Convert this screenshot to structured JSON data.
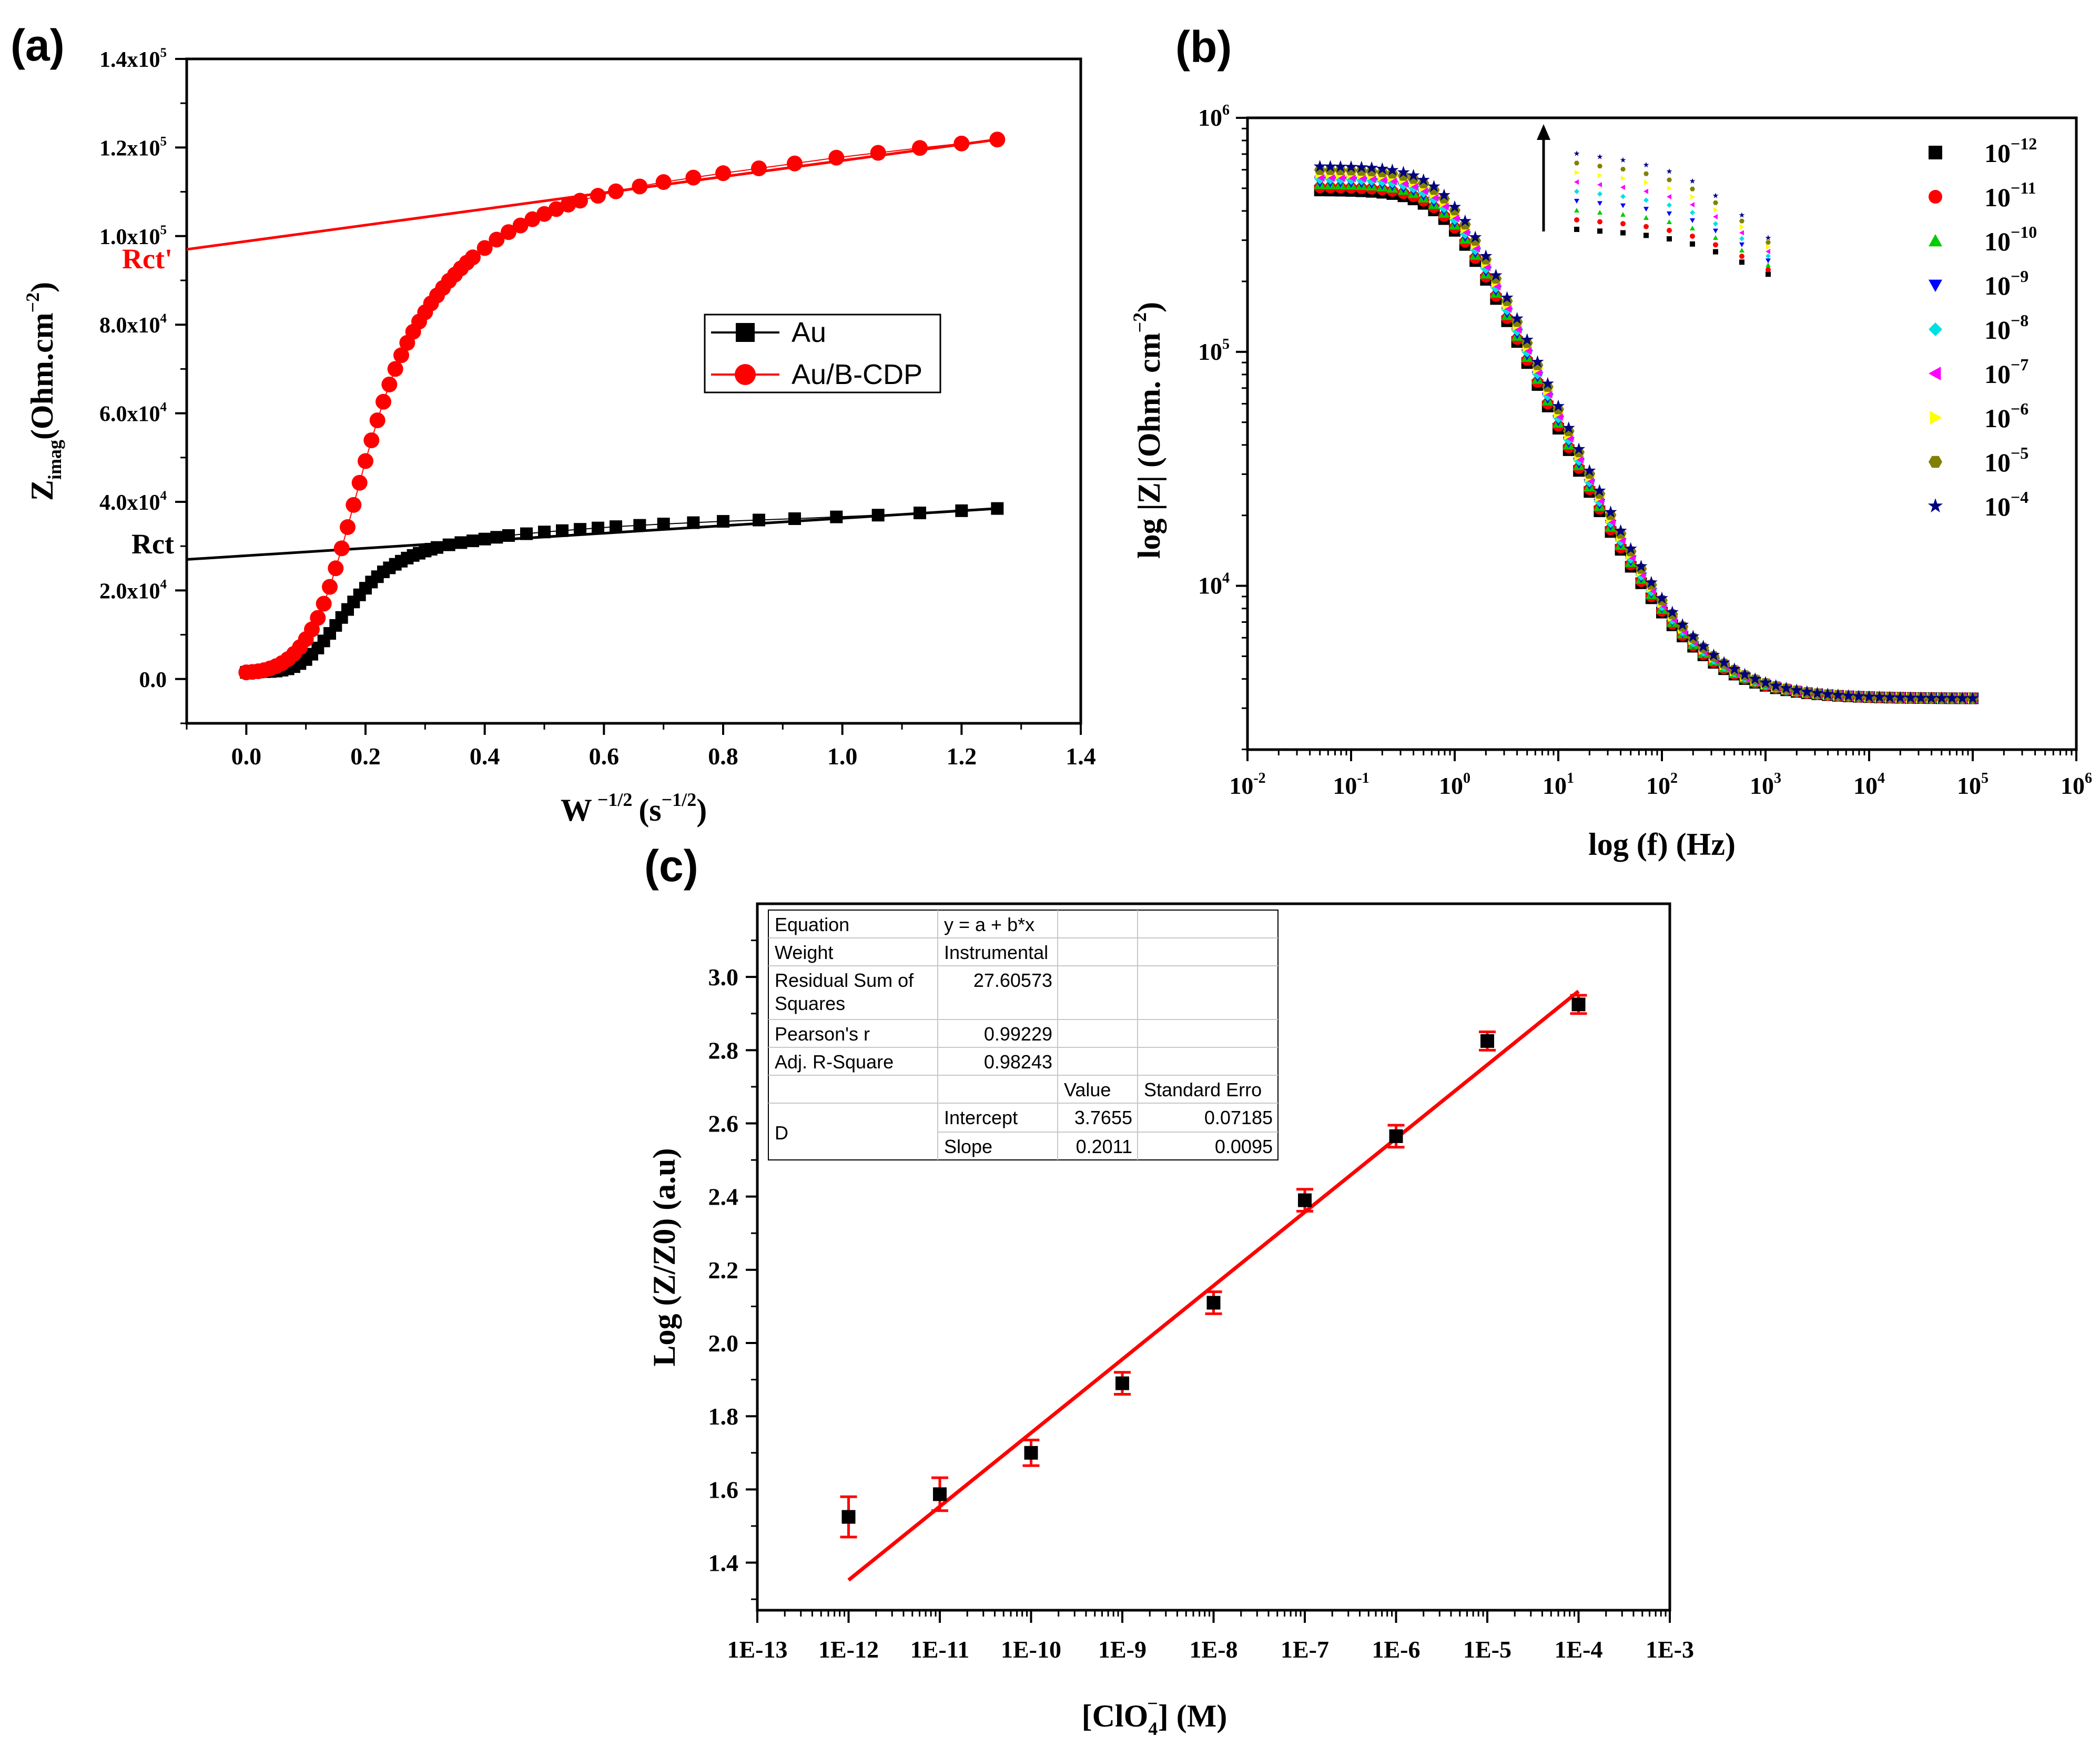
{
  "figure": {
    "panels": [
      {
        "id": "a",
        "label": "(a)",
        "ylabel_main": "Z",
        "ylabel_sub": "imag",
        "ylabel_unit": "(Ohm.cm",
        "ylabel_exp": "−2",
        "ylabel_close": ")",
        "xlabel_main": "W",
        "xlabel_exp": "−1/2",
        "xlabel_unit": "(s",
        "xlabel_unit_exp": "−1/2",
        "xlabel_close": ")",
        "rct_label": "Rct",
        "rct_prime_label": "Rct'"
      },
      {
        "id": "b",
        "label": "(b)",
        "ylabel": "log |Z| (Ohm. cm",
        "ylabel_exp": "−2",
        "ylabel_close": ")",
        "xlabel": "log (f) (Hz)"
      },
      {
        "id": "c",
        "label": "(c)",
        "ylabel": "Log (Z/Z0) (a.u)",
        "xlabel_pre": "[ClO",
        "xlabel_sub": "4",
        "xlabel_sup": "−",
        "xlabel_post": "] (M)"
      }
    ]
  },
  "fit_table": {
    "rows": [
      [
        "Equation",
        "y = a + b*x",
        "",
        ""
      ],
      [
        "Weight",
        "Instrumental",
        "",
        ""
      ],
      [
        "Residual Sum of",
        "27.60573",
        "",
        ""
      ],
      [
        "Squares",
        "",
        "",
        ""
      ],
      [
        "Pearson's r",
        "0.99229",
        "",
        ""
      ],
      [
        "Adj. R-Square",
        "0.98243",
        "",
        ""
      ],
      [
        "",
        "",
        "Value",
        "Standard Erro"
      ],
      [
        "D",
        "Intercept",
        "3.7655",
        "0.07185"
      ],
      [
        "",
        "Slope",
        "0.2011",
        "0.0095"
      ]
    ]
  },
  "chart_data": [
    {
      "panel": "a",
      "type": "scatter",
      "title": "",
      "xlabel": "W −1/2 (s −1/2)",
      "ylabel": "Zimag (Ohm.cm−2)",
      "xlim": [
        -0.1,
        1.4
      ],
      "ylim": [
        -10000,
        140000
      ],
      "xticks": [
        0.0,
        0.2,
        0.4,
        0.6,
        0.8,
        1.0,
        1.2,
        1.4
      ],
      "xtick_labels": [
        "0.0",
        "0.2",
        "0.4",
        "0.6",
        "0.8",
        "1.0",
        "1.2",
        "1.4"
      ],
      "yticks": [
        0,
        20000,
        40000,
        60000,
        80000,
        100000,
        120000,
        140000
      ],
      "ytick_labels": [
        {
          "mant": "0.0",
          "exp": ""
        },
        {
          "mant": "2.0x10",
          "exp": "4"
        },
        {
          "mant": "4.0x10",
          "exp": "4"
        },
        {
          "mant": "6.0x10",
          "exp": "4"
        },
        {
          "mant": "8.0x10",
          "exp": "4"
        },
        {
          "mant": "1.0x10",
          "exp": "5"
        },
        {
          "mant": "1.2x10",
          "exp": "5"
        },
        {
          "mant": "1.4x10",
          "exp": "5"
        }
      ],
      "legend": {
        "position": "center-right",
        "entries": [
          "Au",
          "Au/B-CDP"
        ]
      },
      "series": [
        {
          "name": "Au",
          "color": "#000000",
          "marker": "square",
          "x": [
            0.0,
            0.01,
            0.02,
            0.03,
            0.04,
            0.05,
            0.06,
            0.07,
            0.08,
            0.09,
            0.1,
            0.11,
            0.12,
            0.13,
            0.14,
            0.15,
            0.16,
            0.17,
            0.18,
            0.19,
            0.2,
            0.21,
            0.22,
            0.23,
            0.24,
            0.25,
            0.26,
            0.27,
            0.28,
            0.29,
            0.3,
            0.31,
            0.32,
            0.34,
            0.36,
            0.38,
            0.4,
            0.42,
            0.44,
            0.47,
            0.5,
            0.53,
            0.56,
            0.59,
            0.62,
            0.66,
            0.7,
            0.75,
            0.8,
            0.86,
            0.92,
            0.99,
            1.06,
            1.13,
            1.2,
            1.26
          ],
          "y": [
            1500,
            1550,
            1600,
            1650,
            1700,
            1800,
            2000,
            2300,
            2800,
            3500,
            4400,
            5600,
            7000,
            8600,
            10300,
            12100,
            13900,
            15700,
            17400,
            19000,
            20500,
            21900,
            23100,
            24200,
            25100,
            25900,
            26600,
            27300,
            27900,
            28400,
            28900,
            29300,
            29700,
            30300,
            30800,
            31200,
            31600,
            32000,
            32400,
            32800,
            33200,
            33500,
            33800,
            34100,
            34400,
            34700,
            35000,
            35300,
            35600,
            35900,
            36200,
            36600,
            37000,
            37500,
            38000,
            38500
          ]
        },
        {
          "name": "Au/B-CDP",
          "color": "#ff0000",
          "marker": "circle",
          "x": [
            0.0,
            0.01,
            0.02,
            0.03,
            0.04,
            0.05,
            0.06,
            0.07,
            0.08,
            0.09,
            0.1,
            0.11,
            0.12,
            0.13,
            0.14,
            0.15,
            0.16,
            0.17,
            0.18,
            0.19,
            0.2,
            0.21,
            0.22,
            0.23,
            0.24,
            0.25,
            0.26,
            0.27,
            0.28,
            0.29,
            0.3,
            0.31,
            0.32,
            0.33,
            0.34,
            0.35,
            0.36,
            0.37,
            0.38,
            0.4,
            0.42,
            0.44,
            0.46,
            0.48,
            0.5,
            0.52,
            0.54,
            0.56,
            0.59,
            0.62,
            0.66,
            0.7,
            0.75,
            0.8,
            0.86,
            0.92,
            0.99,
            1.06,
            1.13,
            1.2,
            1.26
          ],
          "y": [
            1500,
            1600,
            1750,
            2000,
            2400,
            2900,
            3600,
            4500,
            5700,
            7200,
            9000,
            11200,
            13800,
            17000,
            20800,
            25000,
            29500,
            34300,
            39300,
            44300,
            49200,
            53900,
            58400,
            62600,
            66500,
            70000,
            73100,
            75900,
            78400,
            80700,
            82800,
            84800,
            86600,
            88300,
            89900,
            91300,
            92700,
            94000,
            95200,
            97300,
            99200,
            100900,
            102400,
            103800,
            105000,
            106100,
            107100,
            108000,
            109100,
            110100,
            111200,
            112200,
            113200,
            114200,
            115300,
            116400,
            117700,
            118800,
            119900,
            120900,
            121800
          ]
        }
      ],
      "fit_lines": [
        {
          "name": "Au fit",
          "color": "#000000",
          "x": [
            -0.1,
            1.26
          ],
          "y": [
            27000,
            38500
          ]
        },
        {
          "name": "Au/B-CDP fit",
          "color": "#ff0000",
          "x": [
            -0.1,
            1.26
          ],
          "y": [
            97000,
            121800
          ]
        }
      ]
    },
    {
      "panel": "b",
      "type": "scatter",
      "title": "",
      "xlabel": "log (f) (Hz)",
      "ylabel": "log |Z| (Ohm. cm−2)",
      "xscale": "log",
      "yscale": "log",
      "xlim_exp": [
        -2,
        6
      ],
      "ylim_exp": [
        3.3,
        6.0
      ],
      "xtick_exps": [
        -2,
        -1,
        0,
        1,
        2,
        3,
        4,
        5,
        6
      ],
      "xtick_labels": [
        {
          "base": "10",
          "exp": "-2"
        },
        {
          "base": "10",
          "exp": "-1"
        },
        {
          "base": "10",
          "exp": "0"
        },
        {
          "base": "10",
          "exp": "1"
        },
        {
          "base": "10",
          "exp": "2"
        },
        {
          "base": "10",
          "exp": "3"
        },
        {
          "base": "10",
          "exp": "4"
        },
        {
          "base": "10",
          "exp": "5"
        },
        {
          "base": "10",
          "exp": "6"
        }
      ],
      "ytick_exps": [
        4,
        5,
        6
      ],
      "ytick_labels": [
        {
          "base": "10",
          "exp": "4"
        },
        {
          "base": "10",
          "exp": "5"
        },
        {
          "base": "10",
          "exp": "6"
        }
      ],
      "legend": {
        "position": "right"
      },
      "series": [
        {
          "name": "10−12",
          "base": "10",
          "exp": "−12",
          "color": "#000000",
          "marker": "square",
          "z_low": 490000
        },
        {
          "name": "10−11",
          "base": "10",
          "exp": "−11",
          "color": "#ff0000",
          "marker": "circle",
          "z_low": 505000
        },
        {
          "name": "10−10",
          "base": "10",
          "exp": "−10",
          "color": "#00cc00",
          "marker": "triangle-up",
          "z_low": 520000
        },
        {
          "name": "10−9",
          "base": "10",
          "exp": "−9",
          "color": "#0000ff",
          "marker": "triangle-down",
          "z_low": 535000
        },
        {
          "name": "10−8",
          "base": "10",
          "exp": "−8",
          "color": "#00e0e0",
          "marker": "diamond",
          "z_low": 550000
        },
        {
          "name": "10−7",
          "base": "10",
          "exp": "−7",
          "color": "#ff00ff",
          "marker": "triangle-left",
          "z_low": 565000
        },
        {
          "name": "10−6",
          "base": "10",
          "exp": "−6",
          "color": "#ffff00",
          "marker": "triangle-right",
          "z_low": 580000
        },
        {
          "name": "10−5",
          "base": "10",
          "exp": "−5",
          "color": "#808000",
          "marker": "hexagon",
          "z_low": 600000
        },
        {
          "name": "10−4",
          "base": "10",
          "exp": "−4",
          "color": "#000080",
          "marker": "star",
          "z_low": 620000
        }
      ],
      "model": {
        "z_high": 3300,
        "corner_freq_hz": 0.9,
        "slope": 1.0
      },
      "freq_points_hz": [
        0.05,
        0.063,
        0.079,
        0.1,
        0.126,
        0.158,
        0.2,
        0.25,
        0.32,
        0.4,
        0.5,
        0.63,
        0.79,
        1.0,
        1.26,
        1.58,
        2.0,
        2.5,
        3.2,
        4.0,
        5.0,
        6.3,
        7.9,
        10,
        12.6,
        15.8,
        20,
        25,
        32,
        40,
        50,
        63,
        79,
        100,
        126,
        158,
        200,
        251,
        316,
        398,
        501,
        631,
        794,
        1000,
        1259,
        1585,
        1995,
        2512,
        3162,
        3981,
        5012,
        6310,
        7943,
        10000,
        12589,
        15849,
        19953,
        25119,
        31623,
        39811,
        50119,
        63096,
        79433,
        100000
      ],
      "inset": {
        "note": "enlarged view of low-frequency spread, arrow indicates increasing concentration",
        "columns": 9,
        "relative_decay": [
          1.0,
          0.98,
          0.96,
          0.93,
          0.89,
          0.83,
          0.74,
          0.62,
          0.48
        ]
      }
    },
    {
      "panel": "c",
      "type": "scatter",
      "title": "",
      "xlabel": "[ClO4−] (M)",
      "ylabel": "Log (Z/Z0) (a.u)",
      "xscale": "log",
      "xlim_exp": [
        -13,
        -3
      ],
      "ylim": [
        1.27,
        3.2
      ],
      "xtick_exps": [
        -13,
        -12,
        -11,
        -10,
        -9,
        -8,
        -7,
        -6,
        -5,
        -4,
        -3
      ],
      "xtick_labels": [
        "1E-13",
        "1E-12",
        "1E-11",
        "1E-10",
        "1E-9",
        "1E-8",
        "1E-7",
        "1E-6",
        "1E-5",
        "1E-4",
        "1E-3"
      ],
      "yticks": [
        1.4,
        1.6,
        1.8,
        2.0,
        2.2,
        2.4,
        2.6,
        2.8,
        3.0
      ],
      "ytick_labels": [
        "1.4",
        "1.6",
        "1.8",
        "2.0",
        "2.2",
        "2.4",
        "2.6",
        "2.8",
        "3.0"
      ],
      "series": [
        {
          "name": "D",
          "color": "#000000",
          "marker": "square",
          "error_color": "#ff0000",
          "x_exp": [
            -12,
            -11,
            -10,
            -9,
            -8,
            -7,
            -6,
            -5,
            -4
          ],
          "y": [
            1.525,
            1.587,
            1.7,
            1.89,
            2.11,
            2.39,
            2.565,
            2.825,
            2.925
          ],
          "yerr": [
            0.055,
            0.045,
            0.035,
            0.03,
            0.03,
            0.03,
            0.03,
            0.025,
            0.025
          ]
        }
      ],
      "fit": {
        "intercept": 3.7655,
        "slope": 0.2011,
        "x_exp_range": [
          -12,
          -4
        ],
        "color": "#ff0000"
      }
    }
  ]
}
